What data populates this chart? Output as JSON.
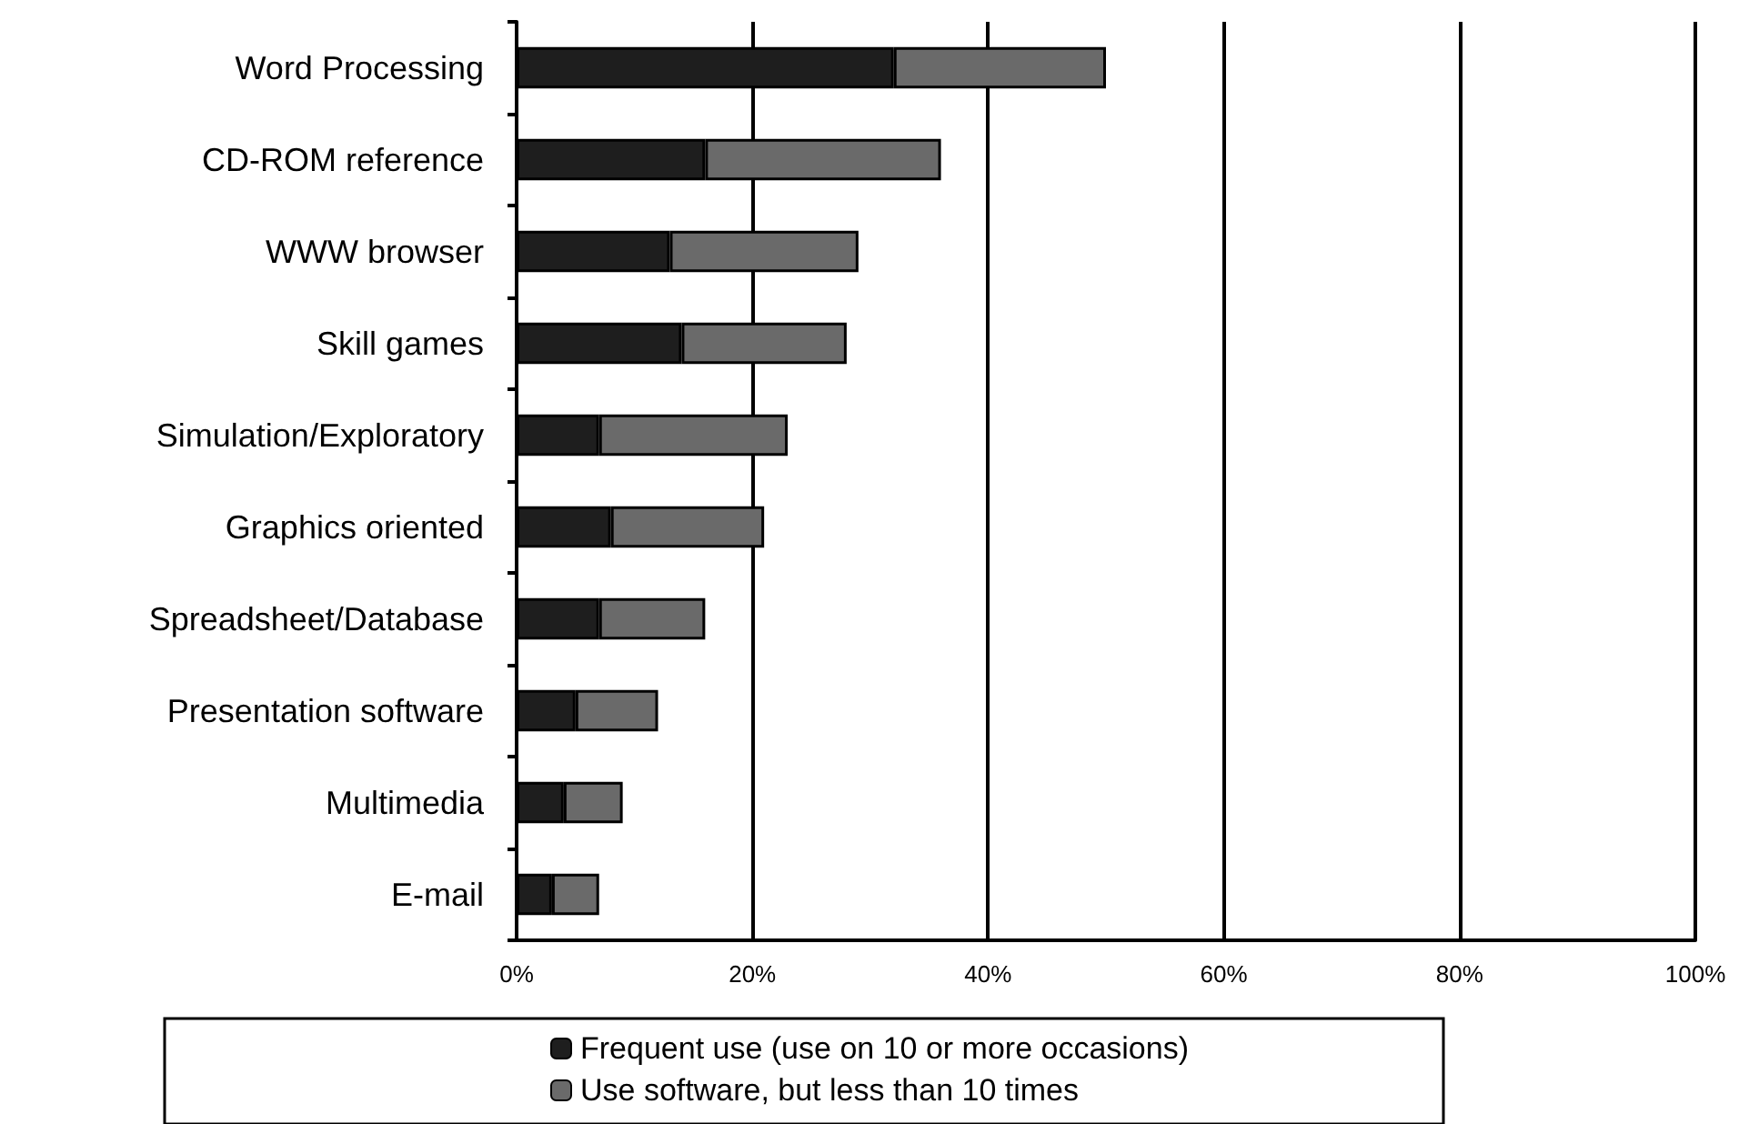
{
  "chart_data": {
    "type": "bar",
    "orientation": "horizontal",
    "stacked": true,
    "categories": [
      "Word Processing",
      "CD-ROM reference",
      "WWW browser",
      "Skill games",
      "Simulation/Exploratory",
      "Graphics oriented",
      "Spreadsheet/Database",
      "Presentation software",
      "Multimedia",
      "E-mail"
    ],
    "series": [
      {
        "name": "Frequent use (use on 10 or more occasions)",
        "color": "#1e1e1e",
        "values": [
          32,
          16,
          13,
          14,
          7,
          8,
          7,
          5,
          4,
          3
        ]
      },
      {
        "name": "Use software, but less than 10 times",
        "color": "#6a6a6a",
        "values": [
          18,
          20,
          16,
          14,
          16,
          13,
          9,
          7,
          5,
          4
        ]
      }
    ],
    "xlim": [
      0,
      100
    ],
    "xticks": [
      {
        "value": 0,
        "label": "0%"
      },
      {
        "value": 20,
        "label": "20%"
      },
      {
        "value": 40,
        "label": "40%"
      },
      {
        "value": 60,
        "label": "60%"
      },
      {
        "value": 80,
        "label": "80%"
      },
      {
        "value": 100,
        "label": "100%"
      }
    ],
    "grid": "x",
    "legend": "bottom"
  }
}
